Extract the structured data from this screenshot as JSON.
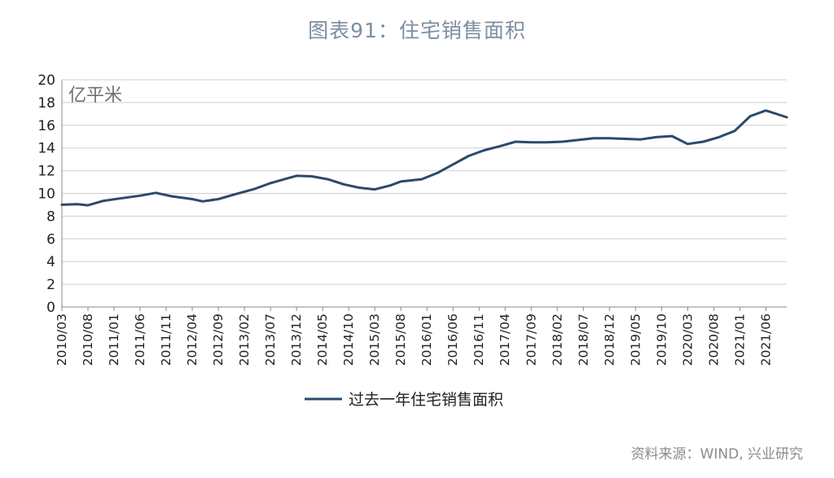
{
  "chart_data": {
    "type": "line",
    "title": "图表91：住宅销售面积",
    "unit_label": "亿平米",
    "source": "资料来源：WIND, 兴业研究",
    "ylim": [
      0,
      20
    ],
    "y_ticks": [
      0,
      2,
      4,
      6,
      8,
      10,
      12,
      14,
      16,
      18,
      20
    ],
    "x_tick_labels": [
      "2010/03",
      "2010/08",
      "2011/01",
      "2011/06",
      "2011/11",
      "2012/04",
      "2012/09",
      "2013/02",
      "2013/07",
      "2013/12",
      "2014/05",
      "2014/10",
      "2015/03",
      "2015/08",
      "2016/01",
      "2016/06",
      "2016/11",
      "2017/04",
      "2017/09",
      "2018/02",
      "2018/07",
      "2018/12",
      "2019/05",
      "2019/10",
      "2020/03",
      "2020/08",
      "2021/01",
      "2021/06"
    ],
    "x_start": "2010/03",
    "x_end": "2021/10",
    "grid": true,
    "legend_position": "bottom",
    "series": [
      {
        "name": "过去一年住宅销售面积",
        "color": "#2b4a6b",
        "points": [
          [
            "2010/03",
            9.0
          ],
          [
            "2010/06",
            9.05
          ],
          [
            "2010/08",
            8.95
          ],
          [
            "2010/11",
            9.35
          ],
          [
            "2011/02",
            9.55
          ],
          [
            "2011/06",
            9.8
          ],
          [
            "2011/09",
            10.05
          ],
          [
            "2011/12",
            9.75
          ],
          [
            "2012/04",
            9.5
          ],
          [
            "2012/06",
            9.3
          ],
          [
            "2012/09",
            9.5
          ],
          [
            "2012/12",
            9.9
          ],
          [
            "2013/04",
            10.4
          ],
          [
            "2013/07",
            10.9
          ],
          [
            "2013/10",
            11.3
          ],
          [
            "2013/12",
            11.55
          ],
          [
            "2014/03",
            11.5
          ],
          [
            "2014/06",
            11.25
          ],
          [
            "2014/09",
            10.8
          ],
          [
            "2014/12",
            10.5
          ],
          [
            "2015/03",
            10.35
          ],
          [
            "2015/06",
            10.7
          ],
          [
            "2015/08",
            11.05
          ],
          [
            "2015/12",
            11.25
          ],
          [
            "2016/03",
            11.8
          ],
          [
            "2016/06",
            12.55
          ],
          [
            "2016/09",
            13.3
          ],
          [
            "2016/12",
            13.8
          ],
          [
            "2017/03",
            14.15
          ],
          [
            "2017/06",
            14.55
          ],
          [
            "2017/09",
            14.5
          ],
          [
            "2017/12",
            14.5
          ],
          [
            "2018/03",
            14.55
          ],
          [
            "2018/06",
            14.7
          ],
          [
            "2018/09",
            14.85
          ],
          [
            "2018/12",
            14.85
          ],
          [
            "2019/03",
            14.8
          ],
          [
            "2019/06",
            14.75
          ],
          [
            "2019/09",
            14.95
          ],
          [
            "2019/12",
            15.05
          ],
          [
            "2020/03",
            14.35
          ],
          [
            "2020/06",
            14.55
          ],
          [
            "2020/09",
            14.95
          ],
          [
            "2020/12",
            15.5
          ],
          [
            "2021/03",
            16.8
          ],
          [
            "2021/06",
            17.3
          ],
          [
            "2021/10",
            16.7
          ]
        ]
      }
    ]
  }
}
